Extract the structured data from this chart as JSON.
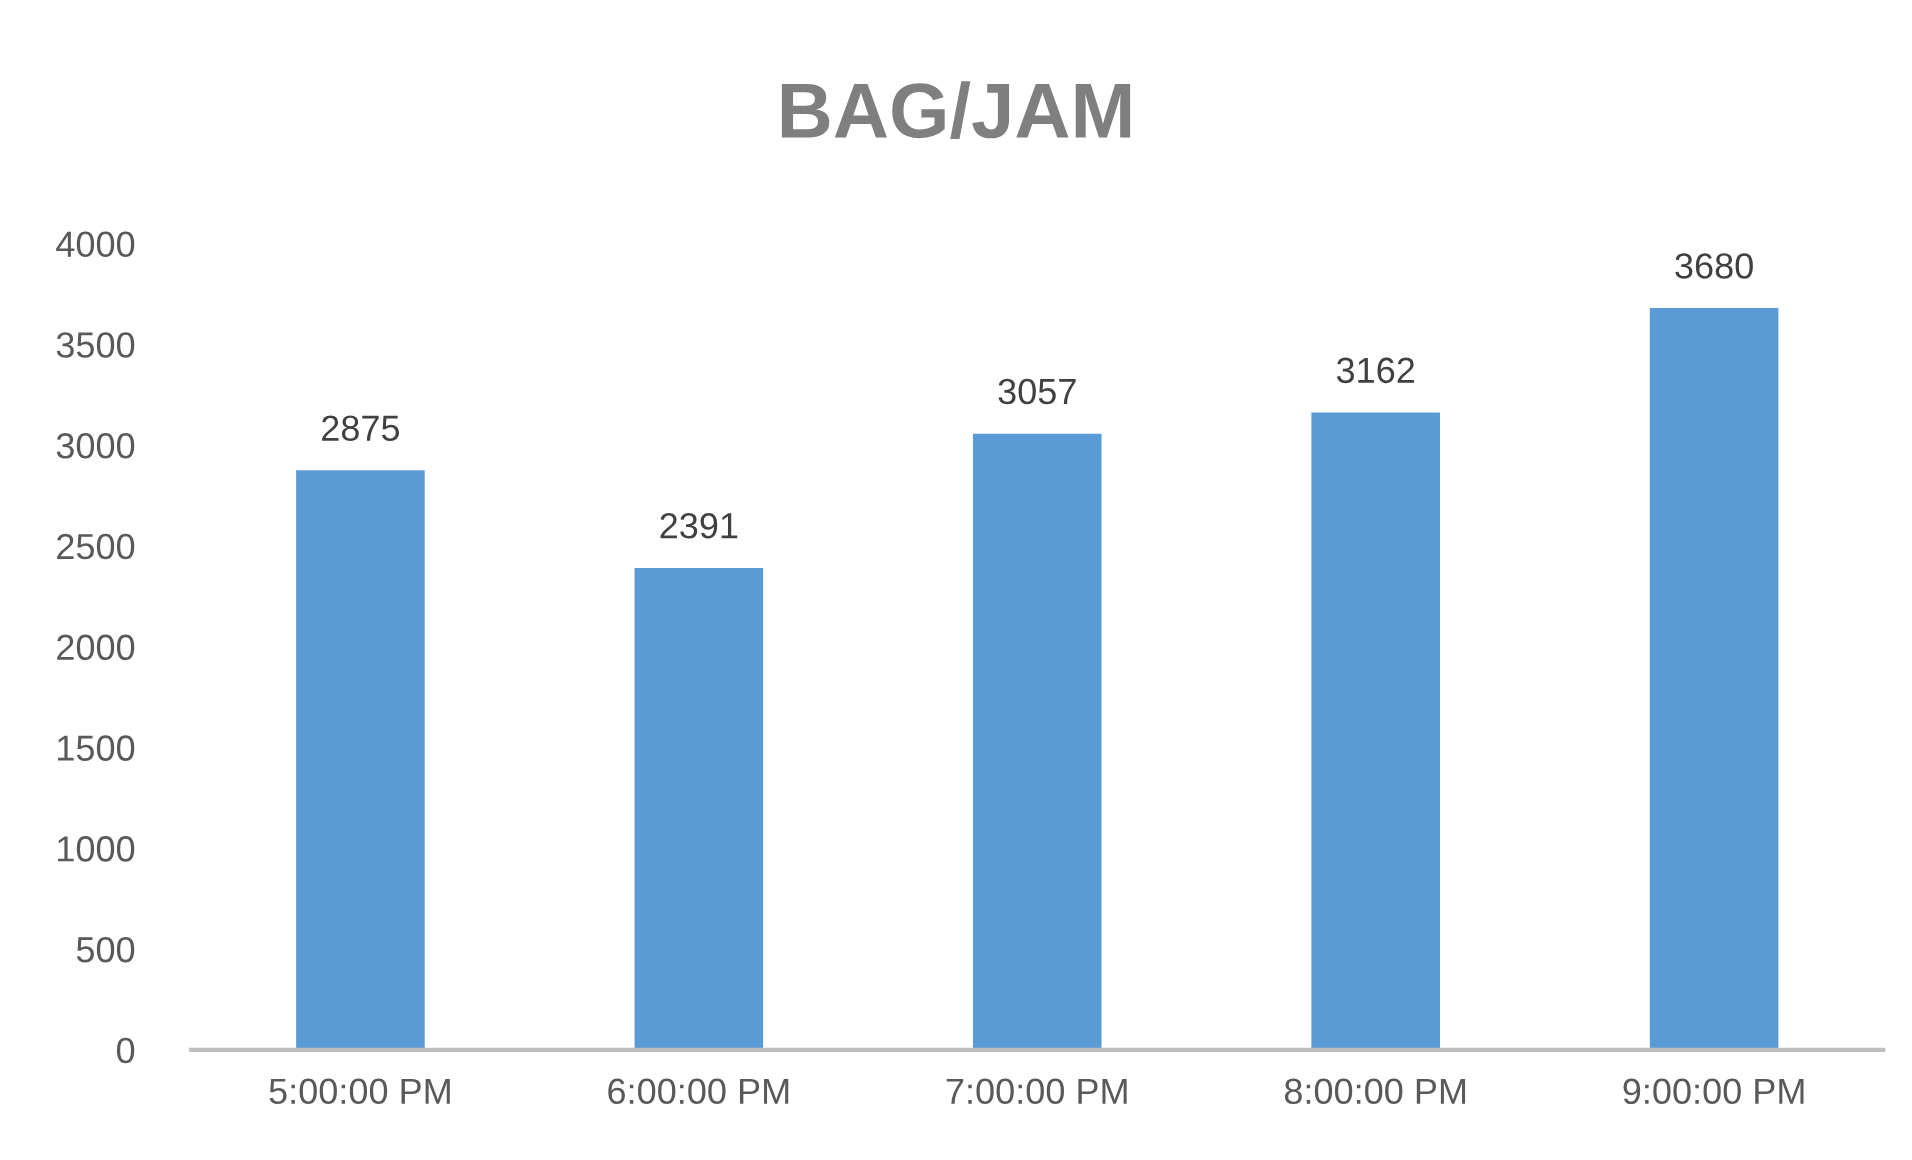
{
  "chart_data": {
    "type": "bar",
    "title": "BAG/JAM",
    "categories": [
      "5:00:00 PM",
      "6:00:00 PM",
      "7:00:00 PM",
      "8:00:00 PM",
      "9:00:00 PM"
    ],
    "values": [
      2875,
      2391,
      3057,
      3162,
      3680
    ],
    "color": "#5b9bd5",
    "ylim": [
      0,
      4000
    ],
    "yticks": [
      0,
      500,
      1000,
      1500,
      2000,
      2500,
      3000,
      3500,
      4000
    ],
    "grid": false,
    "data_labels": true,
    "legend": false
  }
}
